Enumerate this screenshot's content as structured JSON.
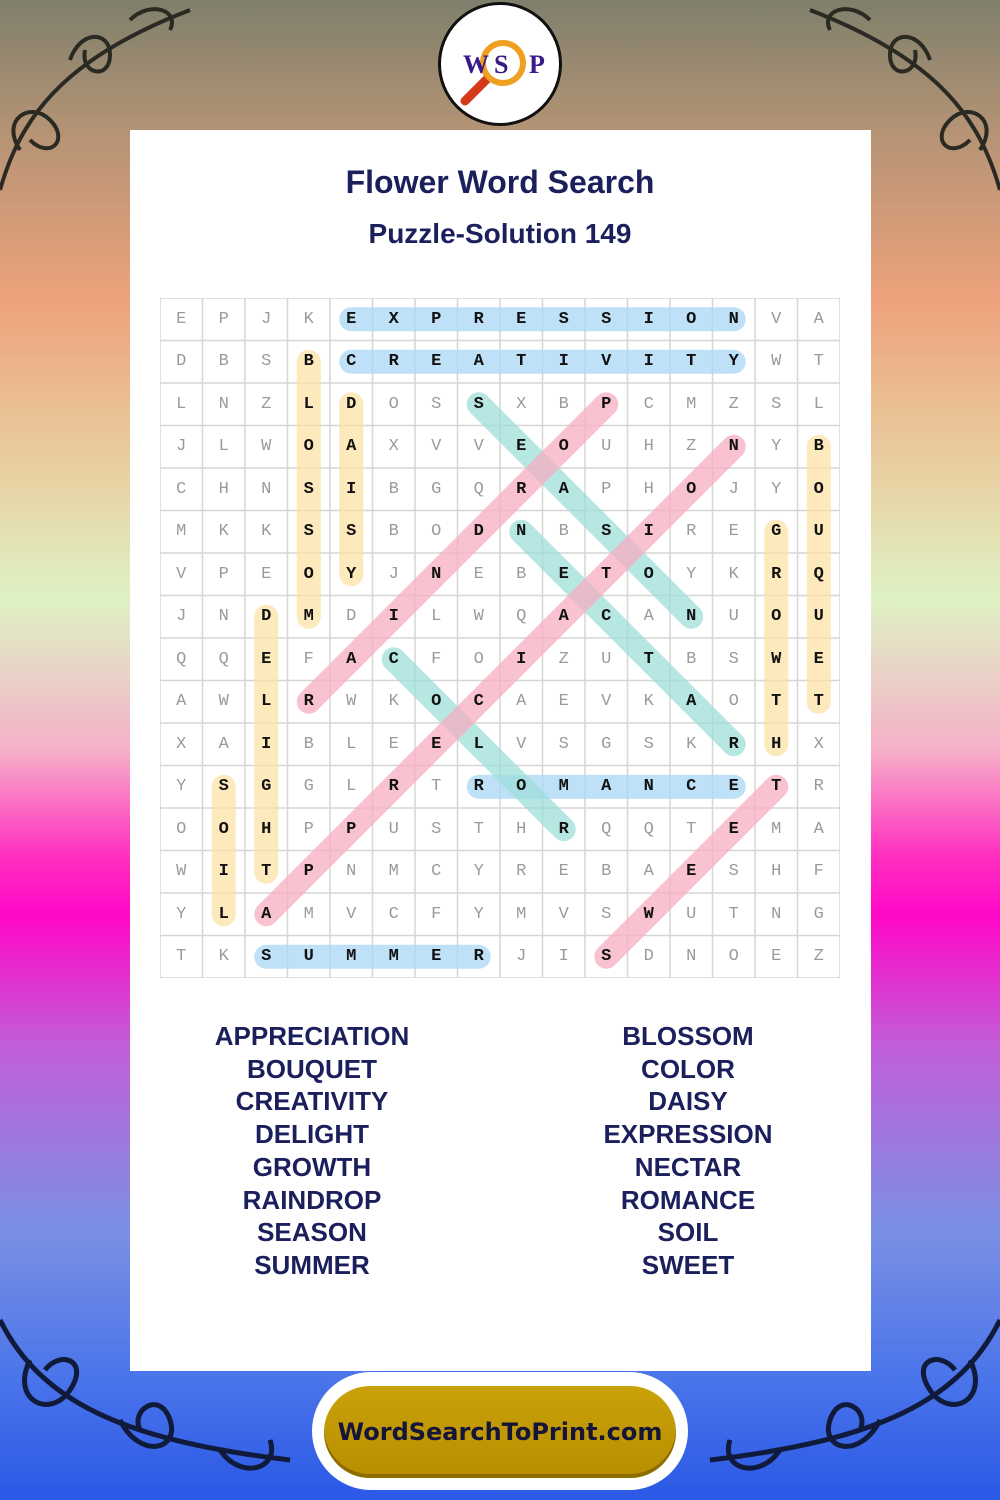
{
  "logo": {
    "letters": [
      "W",
      "S",
      "P"
    ],
    "icon": "magnifier-icon"
  },
  "title": "Flower Word Search",
  "subtitle": "Puzzle-Solution 149",
  "grid": [
    "EPJKEXPRESSIONVA",
    "DBSBCREATIVITYWT",
    "LNZLDOSSXBPCMZSL",
    "JLWOAXVVEOUHZNYB",
    "CHNSIBGQRAPHOJYO",
    "MKKSSBODNBSIREGU",
    "VPEOYJNEBETOYKRQ",
    "JNDMDILWQACANUOU",
    "QQEFACFOIZUTBSWE",
    "AWLRWKOCAEVKAOTT",
    "XAIBLEELVSGSKRHX",
    "YSGGLRTROMANCETR",
    "OOHPPUSTHRQQTEMA",
    "WITPNMCYREBAESHF",
    "YLAMVCFYMVSWUTNG",
    "TKSUMMERJISDNOEZ"
  ],
  "solutions": [
    {
      "word": "EXPRESSION",
      "start": [
        0,
        4
      ],
      "end": [
        0,
        13
      ],
      "color": "#a9d8f6"
    },
    {
      "word": "CREATIVITY",
      "start": [
        1,
        4
      ],
      "end": [
        1,
        13
      ],
      "color": "#a9d8f6"
    },
    {
      "word": "ROMANCE",
      "start": [
        11,
        7
      ],
      "end": [
        11,
        13
      ],
      "color": "#a9d8f6"
    },
    {
      "word": "SUMMER",
      "start": [
        15,
        2
      ],
      "end": [
        15,
        7
      ],
      "color": "#a9d8f6"
    },
    {
      "word": "BLOSSOM",
      "start": [
        1,
        3
      ],
      "end": [
        7,
        3
      ],
      "color": "#fbe2a6"
    },
    {
      "word": "DAISY",
      "start": [
        2,
        4
      ],
      "end": [
        6,
        4
      ],
      "color": "#fbe2a6"
    },
    {
      "word": "DELIGHT",
      "start": [
        7,
        2
      ],
      "end": [
        13,
        2
      ],
      "color": "#fbe2a6"
    },
    {
      "word": "SOIL",
      "start": [
        11,
        1
      ],
      "end": [
        14,
        1
      ],
      "color": "#fbe2a6"
    },
    {
      "word": "BOUQUET",
      "start": [
        3,
        15
      ],
      "end": [
        9,
        15
      ],
      "color": "#fbe2a6"
    },
    {
      "word": "GROWTH",
      "start": [
        5,
        14
      ],
      "end": [
        10,
        14
      ],
      "color": "#fbe2a6"
    },
    {
      "word": "SEASON",
      "start": [
        2,
        7
      ],
      "end": [
        7,
        12
      ],
      "color": "#9fdfda"
    },
    {
      "word": "NECTAR",
      "start": [
        5,
        8
      ],
      "end": [
        10,
        13
      ],
      "color": "#9fdfda"
    },
    {
      "word": "COLOR",
      "start": [
        8,
        5
      ],
      "end": [
        12,
        9
      ],
      "color": "#9fdfda"
    },
    {
      "word": "RAINDROP",
      "start": [
        9,
        3
      ],
      "end": [
        2,
        10
      ],
      "color": "#f8aec2"
    },
    {
      "word": "APPRECIATION",
      "start": [
        14,
        2
      ],
      "end": [
        3,
        13
      ],
      "color": "#f8aec2"
    },
    {
      "word": "SWEET",
      "start": [
        15,
        10
      ],
      "end": [
        11,
        14
      ],
      "color": "#f8aec2"
    }
  ],
  "word_list": {
    "left": [
      "APPRECIATION",
      "BOUQUET",
      "CREATIVITY",
      "DELIGHT",
      "GROWTH",
      "RAINDROP",
      "SEASON",
      "SUMMER"
    ],
    "right": [
      "BLOSSOM",
      "COLOR",
      "DAISY",
      "EXPRESSION",
      "NECTAR",
      "ROMANCE",
      "SOIL",
      "SWEET"
    ]
  },
  "footer": {
    "site": "WordSearchToPrint.com"
  },
  "colors": {
    "title": "#1b1f5c",
    "button": "#c9a10a"
  }
}
